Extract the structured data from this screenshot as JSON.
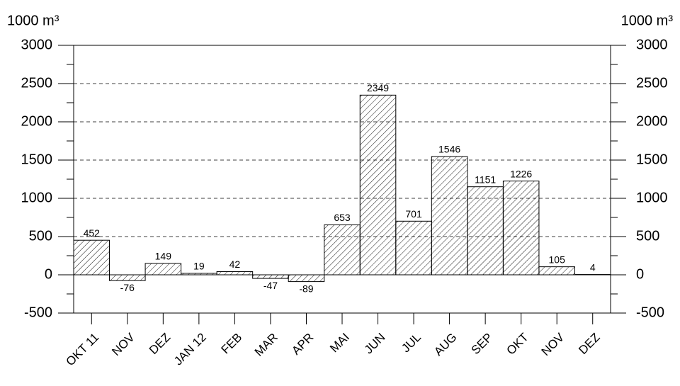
{
  "chart_data": {
    "type": "bar",
    "ylabel": "1000 m³",
    "y2label": "1000 m³",
    "categories": [
      "OKT 11",
      "NOV",
      "DEZ",
      "JAN 12",
      "FEB",
      "MAR",
      "APR",
      "MAI",
      "JUN",
      "JUL",
      "AUG",
      "SEP",
      "OKT",
      "NOV",
      "DEZ"
    ],
    "values": [
      452,
      -76,
      149,
      19,
      42,
      -47,
      -89,
      653,
      2349,
      701,
      1546,
      1151,
      1226,
      105,
      4
    ],
    "color": "#000000",
    "hatch": true,
    "ylim": [
      -500,
      3000
    ],
    "yticks": [
      -500,
      0,
      500,
      1000,
      1500,
      2000,
      2500,
      3000
    ],
    "y2lim": [
      -500,
      3000
    ],
    "y2ticks": [
      -500,
      0,
      500,
      1000,
      1500,
      2000,
      2500,
      3000
    ],
    "grid": true
  }
}
